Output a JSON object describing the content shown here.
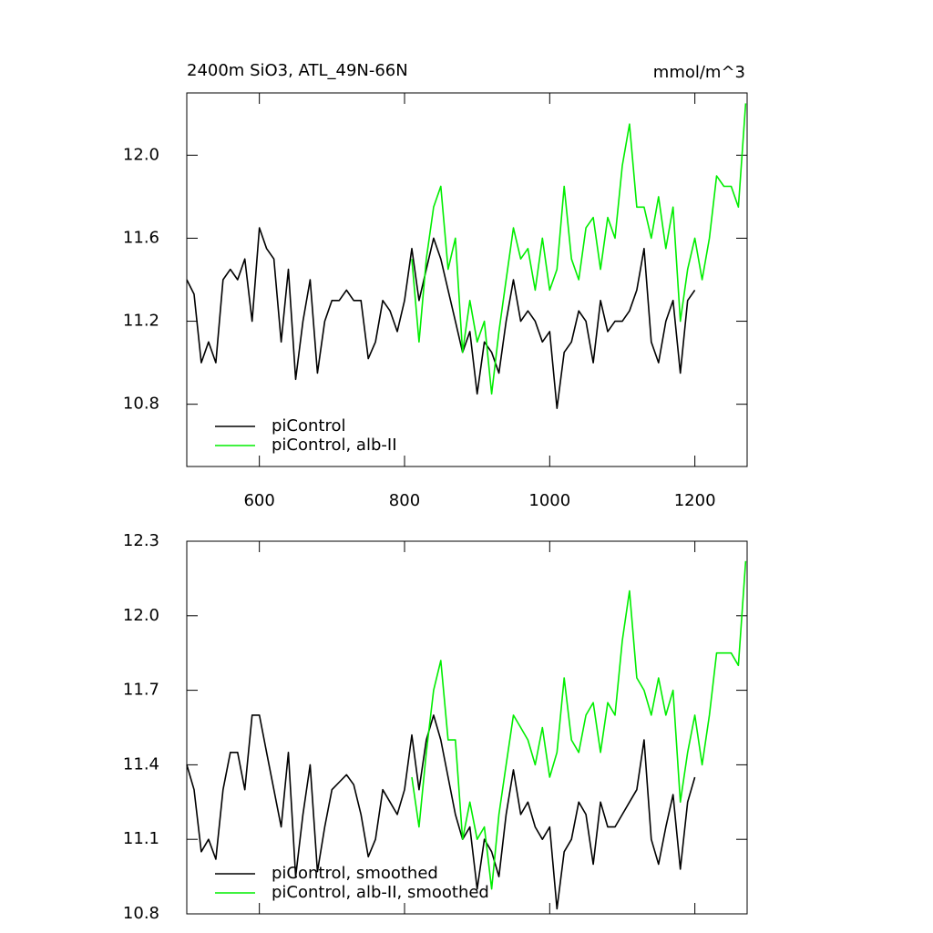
{
  "chart_data": [
    {
      "type": "line",
      "title": "2400m SiO3, ATL_49N-66N",
      "units": "mmol/m^3",
      "xlim": [
        500,
        1272
      ],
      "xticks": [
        600,
        800,
        1000,
        1200
      ],
      "ylim": [
        10.5,
        12.3
      ],
      "yticks": [
        {
          "value": 12,
          "label": "12.0"
        },
        11.6,
        11.2,
        10.8
      ],
      "legend": "lower left",
      "series": [
        {
          "name": "piControl",
          "color": "#000000",
          "x": [
            500,
            510,
            520,
            530,
            540,
            550,
            560,
            570,
            580,
            590,
            600,
            610,
            620,
            630,
            640,
            650,
            660,
            670,
            680,
            690,
            700,
            710,
            720,
            730,
            740,
            750,
            760,
            770,
            780,
            790,
            800,
            810,
            820,
            830,
            840,
            850,
            860,
            870,
            880,
            890,
            900,
            910,
            920,
            930,
            940,
            950,
            960,
            970,
            980,
            990,
            1000,
            1010,
            1020,
            1030,
            1040,
            1050,
            1060,
            1070,
            1080,
            1090,
            1100,
            1110,
            1120,
            1130,
            1140,
            1150,
            1160,
            1170,
            1180,
            1190,
            1200
          ],
          "values": [
            11.4,
            11.33,
            11.0,
            11.1,
            11.0,
            11.4,
            11.45,
            11.4,
            11.5,
            11.2,
            11.65,
            11.55,
            11.5,
            11.1,
            11.45,
            10.92,
            11.2,
            11.4,
            10.95,
            11.2,
            11.3,
            11.3,
            11.35,
            11.3,
            11.3,
            11.02,
            11.1,
            11.3,
            11.25,
            11.15,
            11.3,
            11.55,
            11.3,
            11.45,
            11.6,
            11.5,
            11.35,
            11.2,
            11.05,
            11.15,
            10.85,
            11.1,
            11.05,
            10.95,
            11.2,
            11.4,
            11.2,
            11.25,
            11.2,
            11.1,
            11.15,
            10.78,
            11.05,
            11.1,
            11.25,
            11.2,
            11.0,
            11.3,
            11.15,
            11.2,
            11.2,
            11.25,
            11.35,
            11.55,
            11.1,
            11.0,
            11.2,
            11.3,
            10.95,
            11.3,
            11.35
          ]
        },
        {
          "name": "piControl, alb-II",
          "color": "#00ee00",
          "x": [
            810,
            820,
            830,
            840,
            850,
            860,
            870,
            880,
            890,
            900,
            910,
            920,
            930,
            940,
            950,
            960,
            970,
            980,
            990,
            1000,
            1010,
            1020,
            1030,
            1040,
            1050,
            1060,
            1070,
            1080,
            1090,
            1100,
            1110,
            1120,
            1130,
            1140,
            1150,
            1160,
            1170,
            1180,
            1190,
            1200,
            1210,
            1220,
            1230,
            1240,
            1250,
            1260,
            1270
          ],
          "values": [
            11.5,
            11.1,
            11.5,
            11.75,
            11.85,
            11.45,
            11.6,
            11.05,
            11.3,
            11.1,
            11.2,
            10.85,
            11.15,
            11.4,
            11.65,
            11.5,
            11.55,
            11.35,
            11.6,
            11.35,
            11.45,
            11.85,
            11.5,
            11.4,
            11.65,
            11.7,
            11.45,
            11.7,
            11.6,
            11.95,
            12.15,
            11.75,
            11.75,
            11.6,
            11.8,
            11.55,
            11.75,
            11.2,
            11.45,
            11.6,
            11.4,
            11.6,
            11.9,
            11.85,
            11.85,
            11.75,
            12.25
          ]
        }
      ]
    },
    {
      "type": "line",
      "xlim": [
        500,
        1272
      ],
      "xticks": [
        600,
        800,
        1000,
        1200
      ],
      "ylim": [
        10.8,
        12.3
      ],
      "yticks": [
        12.3,
        {
          "value": 12,
          "label": "12.0"
        },
        11.7,
        11.4,
        11.1,
        10.8
      ],
      "legend": "lower left",
      "series": [
        {
          "name": "piControl, smoothed",
          "color": "#000000",
          "x": [
            500,
            510,
            520,
            530,
            540,
            550,
            560,
            570,
            580,
            590,
            600,
            610,
            620,
            630,
            640,
            650,
            660,
            670,
            680,
            690,
            700,
            710,
            720,
            730,
            740,
            750,
            760,
            770,
            780,
            790,
            800,
            810,
            820,
            830,
            840,
            850,
            860,
            870,
            880,
            890,
            900,
            910,
            920,
            930,
            940,
            950,
            960,
            970,
            980,
            990,
            1000,
            1010,
            1020,
            1030,
            1040,
            1050,
            1060,
            1070,
            1080,
            1090,
            1100,
            1110,
            1120,
            1130,
            1140,
            1150,
            1160,
            1170,
            1180,
            1190,
            1200
          ],
          "values": [
            11.4,
            11.3,
            11.05,
            11.1,
            11.02,
            11.3,
            11.45,
            11.45,
            11.3,
            11.6,
            11.6,
            11.45,
            11.3,
            11.15,
            11.45,
            10.95,
            11.2,
            11.4,
            10.97,
            11.15,
            11.3,
            11.33,
            11.36,
            11.32,
            11.2,
            11.03,
            11.1,
            11.3,
            11.25,
            11.2,
            11.3,
            11.52,
            11.3,
            11.5,
            11.6,
            11.5,
            11.35,
            11.2,
            11.1,
            11.15,
            10.9,
            11.1,
            11.05,
            10.95,
            11.2,
            11.38,
            11.2,
            11.25,
            11.15,
            11.1,
            11.15,
            10.82,
            11.05,
            11.1,
            11.25,
            11.2,
            11.0,
            11.25,
            11.15,
            11.15,
            11.2,
            11.25,
            11.3,
            11.5,
            11.1,
            11.0,
            11.15,
            11.28,
            10.98,
            11.25,
            11.35
          ]
        },
        {
          "name": "piControl, alb-II, smoothed",
          "color": "#00ee00",
          "x": [
            810,
            820,
            830,
            840,
            850,
            860,
            870,
            880,
            890,
            900,
            910,
            920,
            930,
            940,
            950,
            960,
            970,
            980,
            990,
            1000,
            1010,
            1020,
            1030,
            1040,
            1050,
            1060,
            1070,
            1080,
            1090,
            1100,
            1110,
            1120,
            1130,
            1140,
            1150,
            1160,
            1170,
            1180,
            1190,
            1200,
            1210,
            1220,
            1230,
            1240,
            1250,
            1260,
            1270
          ],
          "values": [
            11.35,
            11.15,
            11.45,
            11.7,
            11.82,
            11.5,
            11.5,
            11.1,
            11.25,
            11.1,
            11.15,
            10.9,
            11.2,
            11.4,
            11.6,
            11.55,
            11.5,
            11.4,
            11.55,
            11.35,
            11.45,
            11.75,
            11.5,
            11.45,
            11.6,
            11.65,
            11.45,
            11.65,
            11.6,
            11.9,
            12.1,
            11.75,
            11.7,
            11.6,
            11.75,
            11.6,
            11.7,
            11.25,
            11.45,
            11.6,
            11.4,
            11.6,
            11.85,
            11.85,
            11.85,
            11.8,
            12.22
          ]
        }
      ]
    }
  ]
}
